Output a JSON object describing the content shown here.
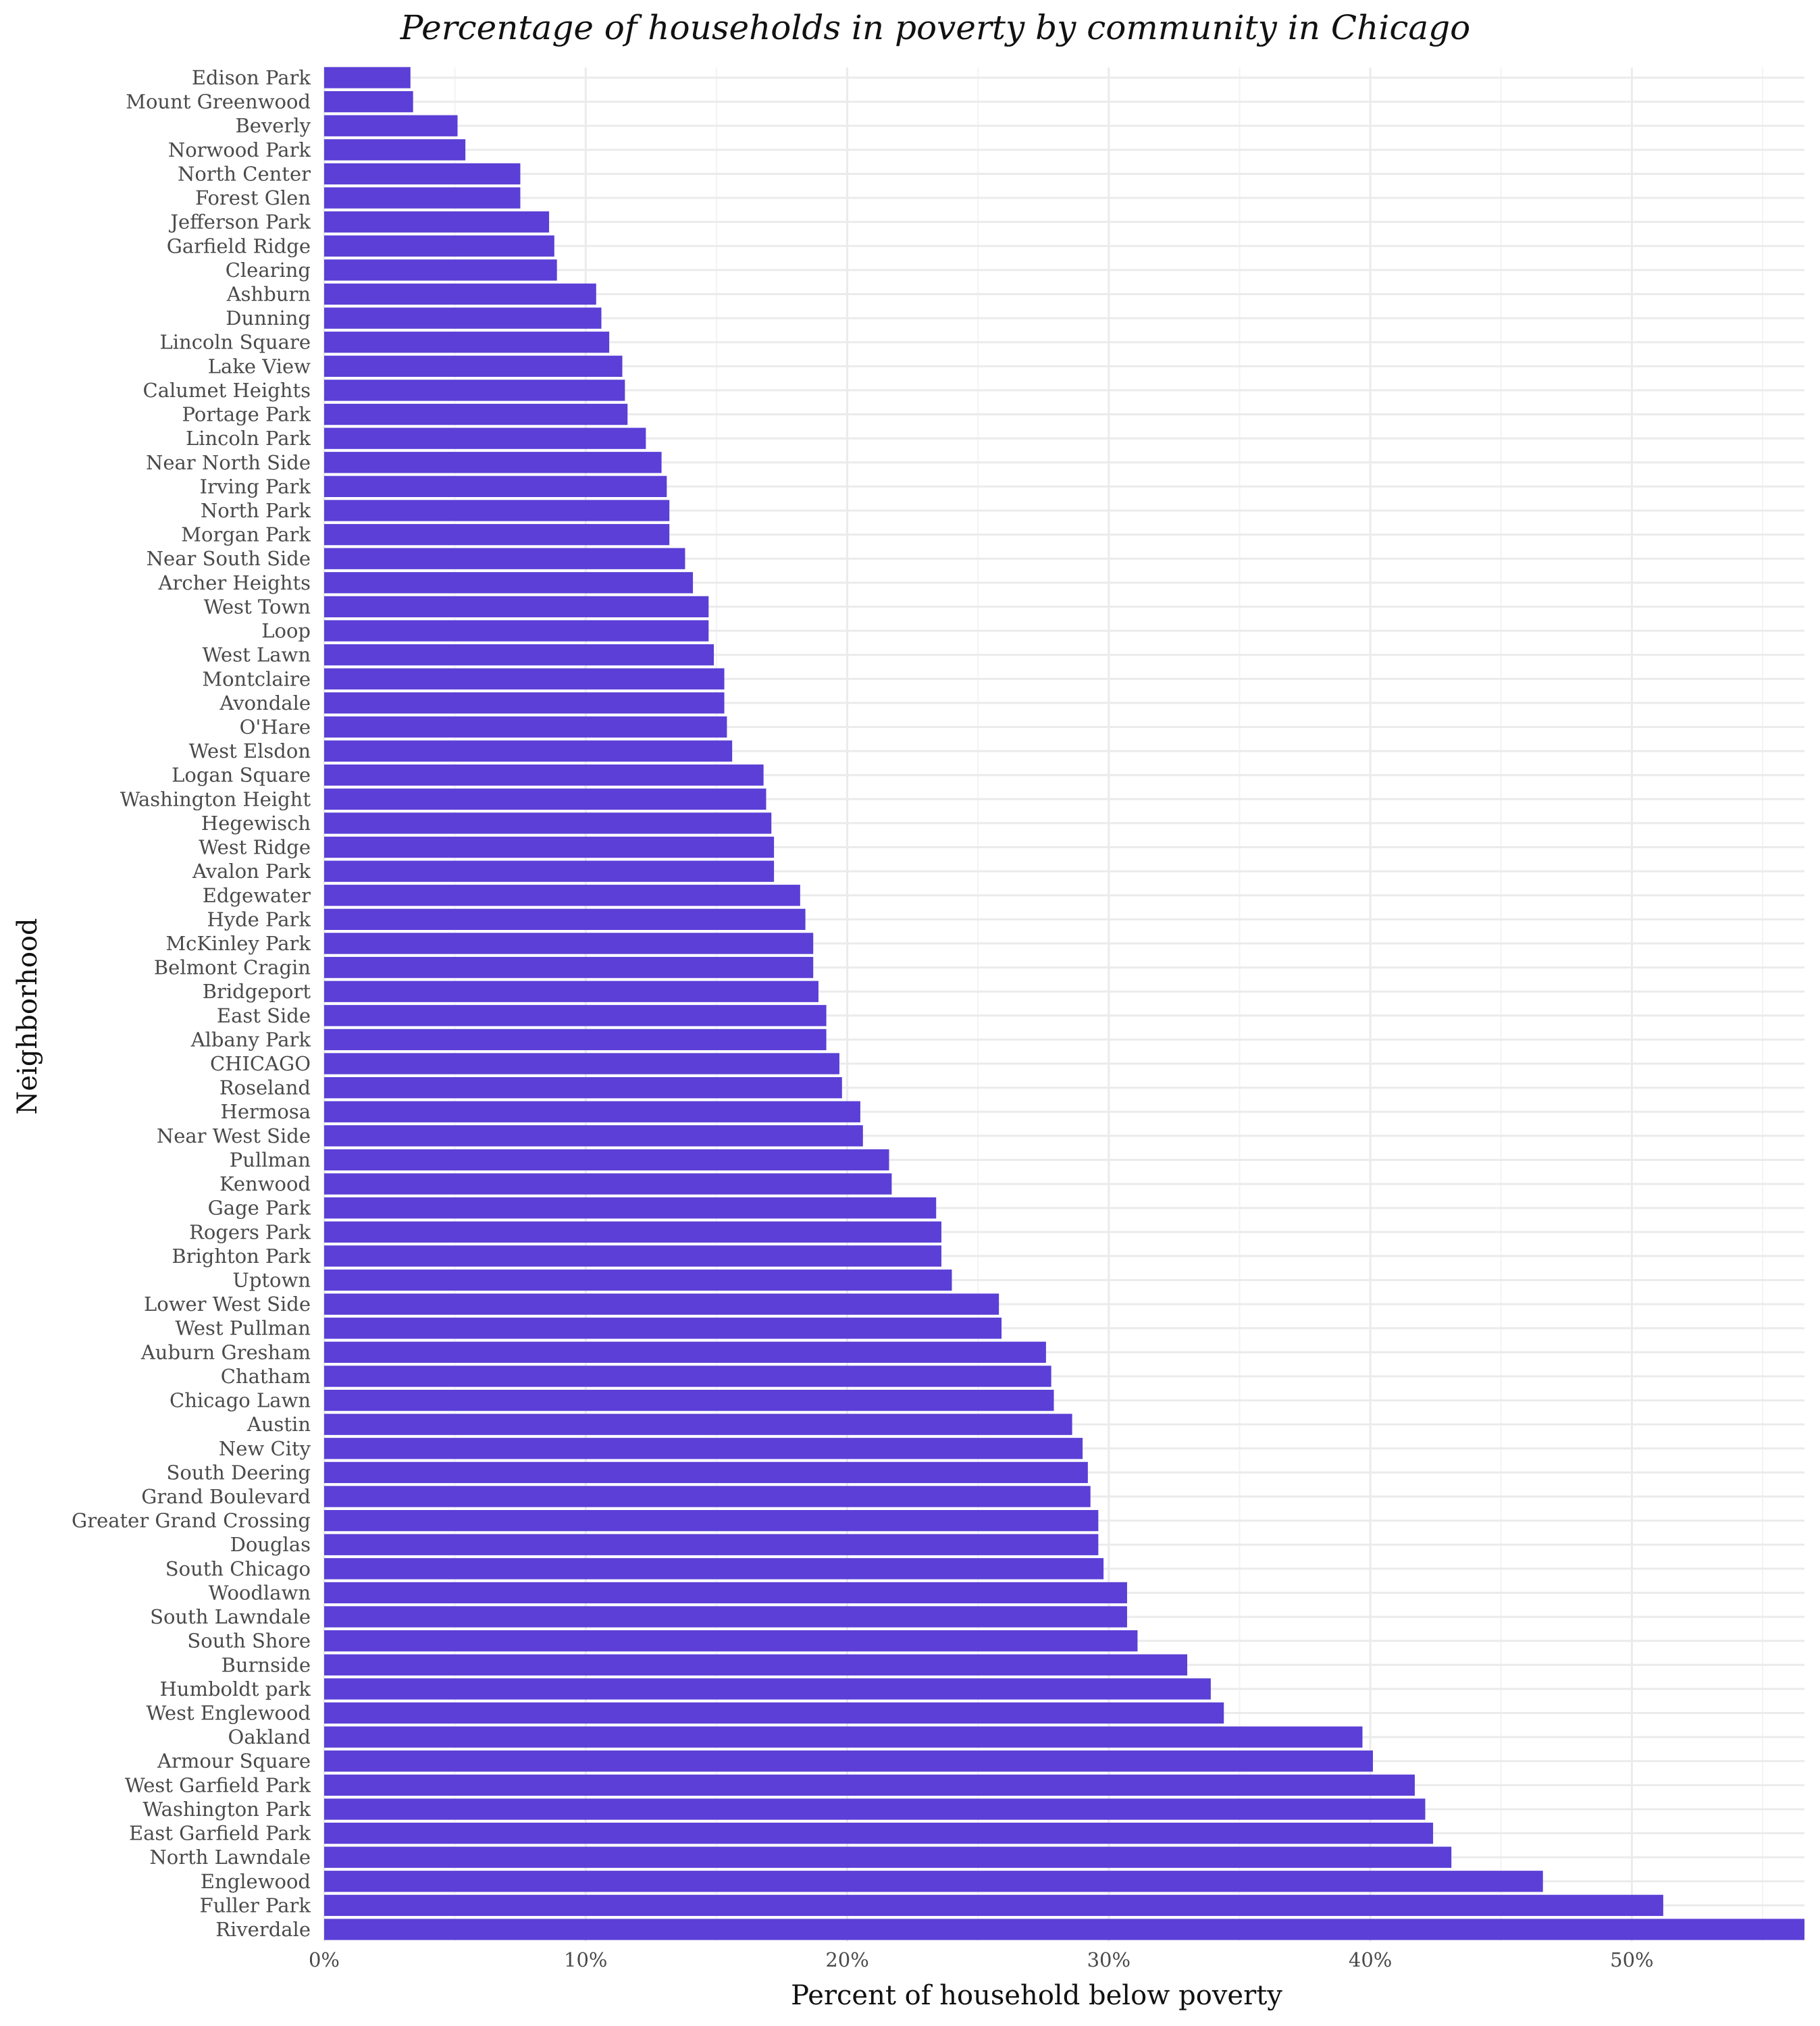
{
  "chart_data": {
    "type": "bar",
    "orientation": "horizontal",
    "title": "Percentage of households in poverty by community in Chicago",
    "xlabel": "Percent of household below poverty",
    "ylabel": "Neighborhood",
    "bar_color": "#5b3fd6",
    "grid": true,
    "xlim": [
      0,
      56.6
    ],
    "x_ticks": [
      {
        "value": 0,
        "label": "0%"
      },
      {
        "value": 10,
        "label": "10%"
      },
      {
        "value": 20,
        "label": "20%"
      },
      {
        "value": 30,
        "label": "30%"
      },
      {
        "value": 40,
        "label": "40%"
      },
      {
        "value": 50,
        "label": "50%"
      }
    ],
    "categories": [
      "Edison Park",
      "Mount Greenwood",
      "Beverly",
      "Norwood Park",
      "North Center",
      "Forest Glen",
      "Jefferson Park",
      "Garfield Ridge",
      "Clearing",
      "Ashburn",
      "Dunning",
      "Lincoln Square",
      "Lake View",
      "Calumet Heights",
      "Portage Park",
      "Lincoln Park",
      "Near North Side",
      "Irving Park",
      "North Park",
      "Morgan Park",
      "Near South Side",
      "Archer Heights",
      "West Town",
      "Loop",
      "West Lawn",
      "Montclaire",
      "Avondale",
      "O'Hare",
      "West Elsdon",
      "Logan Square",
      "Washington Height",
      "Hegewisch",
      "West Ridge",
      "Avalon Park",
      "Edgewater",
      "Hyde Park",
      "McKinley Park",
      "Belmont Cragin",
      "Bridgeport",
      "East Side",
      "Albany Park",
      "CHICAGO",
      "Roseland",
      "Hermosa",
      "Near West Side",
      "Pullman",
      "Kenwood",
      "Gage Park",
      "Rogers Park",
      "Brighton Park",
      "Uptown",
      "Lower West Side",
      "West Pullman",
      "Auburn Gresham",
      "Chatham",
      "Chicago Lawn",
      "Austin",
      "New City",
      "South Deering",
      "Grand Boulevard",
      "Greater Grand Crossing",
      "Douglas",
      "South Chicago",
      "Woodlawn",
      "South Lawndale",
      "South Shore",
      "Burnside",
      "Humboldt park",
      "West Englewood",
      "Oakland",
      "Armour Square",
      "West Garfield Park",
      "Washington Park",
      "East Garfield Park",
      "North Lawndale",
      "Englewood",
      "Fuller Park",
      "Riverdale"
    ],
    "values": [
      3.3,
      3.4,
      5.1,
      5.4,
      7.5,
      7.5,
      8.6,
      8.8,
      8.9,
      10.4,
      10.6,
      10.9,
      11.4,
      11.5,
      11.6,
      12.3,
      12.9,
      13.1,
      13.2,
      13.2,
      13.8,
      14.1,
      14.7,
      14.7,
      14.9,
      15.3,
      15.3,
      15.4,
      15.6,
      16.8,
      16.9,
      17.1,
      17.2,
      17.2,
      18.2,
      18.4,
      18.7,
      18.7,
      18.9,
      19.2,
      19.2,
      19.7,
      19.8,
      20.5,
      20.6,
      21.6,
      21.7,
      23.4,
      23.6,
      23.6,
      24.0,
      25.8,
      25.9,
      27.6,
      27.8,
      27.9,
      28.6,
      29.0,
      29.2,
      29.3,
      29.6,
      29.6,
      29.8,
      30.7,
      30.7,
      31.1,
      33.0,
      33.9,
      34.4,
      39.7,
      40.1,
      41.7,
      42.1,
      42.4,
      43.1,
      46.6,
      51.2,
      56.6
    ]
  }
}
